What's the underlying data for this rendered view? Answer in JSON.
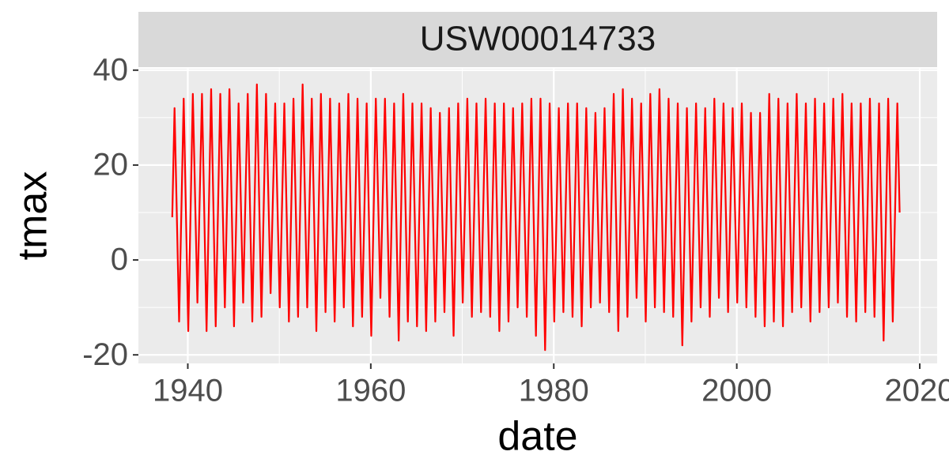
{
  "chart_data": {
    "type": "line",
    "facet_label": "USW00014733",
    "xlabel": "date",
    "ylabel": "tmax",
    "color": "#ff0000",
    "xlim": [
      1934.6,
      2021.9
    ],
    "ylim": [
      -21.8,
      40.3
    ],
    "xticks": [
      1940,
      1960,
      1980,
      2000,
      2020
    ],
    "yticks": [
      -20,
      0,
      20,
      40
    ],
    "xminor": [
      1950,
      1970,
      1990,
      2010
    ],
    "yminor": [
      -10,
      10,
      30
    ],
    "grid": true,
    "x": [
      1938.3,
      1938.55,
      1939.05,
      1939.55,
      1940.05,
      1940.55,
      1941.05,
      1941.55,
      1942.05,
      1942.55,
      1943.05,
      1943.55,
      1944.05,
      1944.55,
      1945.05,
      1945.55,
      1946.05,
      1946.55,
      1947.05,
      1947.55,
      1948.05,
      1948.55,
      1949.05,
      1949.55,
      1950.05,
      1950.55,
      1951.05,
      1951.55,
      1952.05,
      1952.55,
      1953.05,
      1953.55,
      1954.05,
      1954.55,
      1955.05,
      1955.55,
      1956.05,
      1956.55,
      1957.05,
      1957.55,
      1958.05,
      1958.55,
      1959.05,
      1959.55,
      1960.05,
      1960.55,
      1961.05,
      1961.55,
      1962.05,
      1962.55,
      1963.05,
      1963.55,
      1964.05,
      1964.55,
      1965.05,
      1965.55,
      1966.05,
      1966.55,
      1967.05,
      1967.55,
      1968.05,
      1968.55,
      1969.05,
      1969.55,
      1970.05,
      1970.55,
      1971.05,
      1971.55,
      1972.05,
      1972.55,
      1973.05,
      1973.55,
      1974.05,
      1974.55,
      1975.05,
      1975.55,
      1976.05,
      1976.55,
      1977.05,
      1977.55,
      1978.05,
      1978.55,
      1979.05,
      1979.55,
      1980.05,
      1980.55,
      1981.05,
      1981.55,
      1982.05,
      1982.55,
      1983.05,
      1983.55,
      1984.05,
      1984.55,
      1985.05,
      1985.55,
      1986.05,
      1986.55,
      1987.05,
      1987.55,
      1988.05,
      1988.55,
      1989.05,
      1989.55,
      1990.05,
      1990.55,
      1991.05,
      1991.55,
      1992.05,
      1992.55,
      1993.05,
      1993.55,
      1994.05,
      1994.55,
      1995.05,
      1995.55,
      1996.05,
      1996.55,
      1997.05,
      1997.55,
      1998.05,
      1998.55,
      1999.05,
      1999.55,
      2000.05,
      2000.55,
      2001.05,
      2001.55,
      2002.05,
      2002.55,
      2003.05,
      2003.55,
      2004.05,
      2004.55,
      2005.05,
      2005.55,
      2006.05,
      2006.55,
      2007.05,
      2007.55,
      2008.05,
      2008.55,
      2009.05,
      2009.55,
      2010.05,
      2010.55,
      2011.05,
      2011.55,
      2012.05,
      2012.55,
      2013.05,
      2013.55,
      2014.05,
      2014.55,
      2015.05,
      2015.55,
      2016.05,
      2016.55,
      2017.05,
      2017.55,
      2017.8
    ],
    "values": [
      9,
      32,
      -13,
      34,
      -15,
      35,
      -9,
      35,
      -15,
      36,
      -14,
      35,
      -10,
      36,
      -14,
      33,
      -9,
      35,
      -13,
      37,
      -12,
      35,
      -7,
      33,
      -10,
      33,
      -13,
      34,
      -12,
      37,
      -10,
      34,
      -15,
      35,
      -11,
      34,
      -13,
      33,
      -10,
      35,
      -14,
      34,
      -12,
      33,
      -16,
      34,
      -8,
      34,
      -12,
      33,
      -17,
      35,
      -13,
      33,
      -14,
      33,
      -15,
      32,
      -13,
      31,
      -11,
      32,
      -16,
      33,
      -9,
      34,
      -12,
      33,
      -11,
      34,
      -12,
      33,
      -15,
      33,
      -13,
      32,
      -10,
      33,
      -12,
      34,
      -16,
      34,
      -19,
      33,
      -13,
      32,
      -11,
      33,
      -12,
      33,
      -14,
      32,
      -10,
      31,
      -9,
      32,
      -11,
      35,
      -15,
      36,
      -12,
      34,
      -8,
      33,
      -13,
      35,
      -10,
      36,
      -11,
      34,
      -12,
      33,
      -18,
      32,
      -13,
      33,
      -10,
      32,
      -12,
      34,
      -8,
      33,
      -11,
      32,
      -9,
      33,
      -10,
      31,
      -12,
      31,
      -14,
      35,
      -13,
      34,
      -14,
      33,
      -11,
      35,
      -10,
      33,
      -13,
      34,
      -11,
      33,
      -10,
      34,
      -9,
      35,
      -12,
      33,
      -13,
      33,
      -11,
      34,
      -12,
      33,
      -17,
      34,
      -13,
      33,
      10
    ]
  }
}
